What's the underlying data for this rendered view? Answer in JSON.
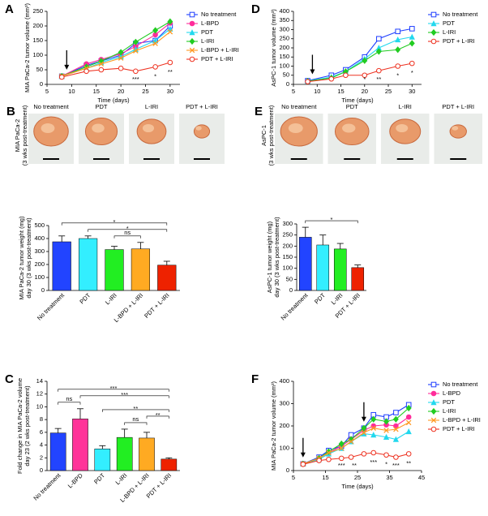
{
  "chart_data": [
    {
      "panel": "A",
      "type": "line",
      "xlabel": "Time (days)",
      "ylabel": [
        "MIA PaCa-2 tumor volume (mm³)"
      ],
      "x": [
        8,
        13,
        16,
        20,
        23,
        27,
        30
      ],
      "xlim": [
        5,
        32
      ],
      "xticks": [
        5,
        10,
        15,
        20,
        25,
        30
      ],
      "ylim": [
        0,
        250
      ],
      "yticks": [
        0,
        50,
        100,
        150,
        200,
        250
      ],
      "arrows": [
        9
      ],
      "series": [
        {
          "name": "No treatment",
          "color": "#1f3fff",
          "marker": "square",
          "values": [
            28,
            65,
            80,
            100,
            140,
            150,
            200
          ]
        },
        {
          "name": "L-BPD",
          "color": "#ff2d9a",
          "marker": "circle",
          "values": [
            28,
            70,
            85,
            105,
            130,
            170,
            210
          ]
        },
        {
          "name": "PDT",
          "color": "#22d8ee",
          "marker": "triangle",
          "values": [
            28,
            55,
            75,
            95,
            120,
            150,
            190
          ]
        },
        {
          "name": "L-IRI",
          "color": "#22cc22",
          "marker": "diamond",
          "values": [
            28,
            60,
            80,
            110,
            145,
            185,
            215
          ]
        },
        {
          "name": "L-BPD + L-IRI",
          "color": "#ff9922",
          "marker": "cross",
          "values": [
            28,
            55,
            70,
            90,
            115,
            140,
            180
          ]
        },
        {
          "name": "PDT + L-IRI",
          "color": "#ee3322",
          "marker": "open-circle",
          "values": [
            25,
            45,
            50,
            55,
            45,
            60,
            75
          ]
        }
      ],
      "annotations": [
        {
          "x": 23,
          "text": "***"
        },
        {
          "x": 27,
          "text": "*"
        },
        {
          "x": 30,
          "text": "**"
        }
      ]
    },
    {
      "panel": "D",
      "type": "line",
      "xlabel": "Time (days)",
      "ylabel": [
        "AsPC-1 tumor volume (mm³)"
      ],
      "x": [
        8,
        13,
        16,
        20,
        23,
        27,
        30
      ],
      "xlim": [
        5,
        32
      ],
      "xticks": [
        5,
        10,
        15,
        20,
        25,
        30
      ],
      "ylim": [
        0,
        400
      ],
      "yticks": [
        0,
        50,
        100,
        150,
        200,
        250,
        300,
        350,
        400
      ],
      "arrows": [
        9
      ],
      "series": [
        {
          "name": "No treatment",
          "color": "#1f3fff",
          "marker": "square",
          "values": [
            20,
            50,
            80,
            150,
            250,
            290,
            305
          ]
        },
        {
          "name": "PDT",
          "color": "#22d8ee",
          "marker": "triangle",
          "values": [
            18,
            40,
            70,
            140,
            200,
            245,
            260
          ]
        },
        {
          "name": "L-IRI",
          "color": "#22cc22",
          "marker": "diamond",
          "values": [
            18,
            35,
            70,
            130,
            180,
            190,
            225
          ]
        },
        {
          "name": "PDT + L-IRI",
          "color": "#ee3322",
          "marker": "open-circle",
          "values": [
            15,
            30,
            50,
            50,
            75,
            100,
            115
          ]
        }
      ],
      "annotations": [
        {
          "x": 20,
          "text": "*"
        },
        {
          "x": 23,
          "text": "**"
        },
        {
          "x": 27,
          "text": "*"
        },
        {
          "x": 30,
          "text": "*"
        }
      ]
    },
    {
      "panel": "B",
      "type": "bar",
      "ylabel": [
        "MIA PaCa-2 tumor weight (mg)",
        "day 30 (3 wks post-treatment)"
      ],
      "photo_labels": [
        "No treatment",
        "PDT",
        "L-IRI",
        "PDT + L-IRI"
      ],
      "photo_side_label": [
        "MIA PaCa-2",
        "(3 wks post-treatment)"
      ],
      "categories": [
        "No treatment",
        "PDT",
        "L-IRI",
        "L-BPD + L-IRI",
        "PDT + L-IRI"
      ],
      "values": [
        375,
        400,
        315,
        320,
        195
      ],
      "errors": [
        45,
        20,
        25,
        50,
        30
      ],
      "colors": [
        "#2244ff",
        "#33eeff",
        "#22ee22",
        "#ffaa22",
        "#ee2200"
      ],
      "ylim": [
        0,
        500
      ],
      "yticks": [
        0,
        100,
        200,
        300,
        400,
        500
      ],
      "brackets": [
        {
          "from": 2,
          "to": 3,
          "text": "ns"
        },
        {
          "from": 1,
          "to": 4,
          "text": "*"
        },
        {
          "from": 0,
          "to": 4,
          "text": "*"
        }
      ]
    },
    {
      "panel": "E",
      "type": "bar",
      "ylabel": [
        "AsPC-1 tumor weight (mg)",
        "day 30 (3 wks post-treatment)"
      ],
      "photo_labels": [
        "No treatment",
        "PDT",
        "L-IRI",
        "PDT + L-IRI"
      ],
      "photo_side_label": [
        "AsPC-1",
        "(3 wks post-treatment)"
      ],
      "categories": [
        "No treatment",
        "PDT",
        "L-IRI",
        "PDT + L-IRI"
      ],
      "values": [
        240,
        205,
        187,
        103
      ],
      "errors": [
        45,
        45,
        25,
        12
      ],
      "colors": [
        "#2244ff",
        "#33eeff",
        "#22ee22",
        "#ee2200"
      ],
      "ylim": [
        0,
        300
      ],
      "yticks": [
        0,
        50,
        100,
        150,
        200,
        250,
        300
      ],
      "brackets": [
        {
          "from": 0,
          "to": 3,
          "text": "*"
        }
      ]
    },
    {
      "panel": "C",
      "type": "bar",
      "ylabel": [
        "Fold change in MIA PaCa-2 volume",
        "day 23 (2 wks post-treatment)"
      ],
      "categories": [
        "No treatment",
        "L-BPD",
        "PDT",
        "L-IRI",
        "L-BPD + L-IRI",
        "PDT + L-IRI"
      ],
      "values": [
        5.9,
        8.1,
        3.4,
        5.2,
        5.1,
        1.8
      ],
      "errors": [
        0.7,
        1.6,
        0.5,
        1.3,
        0.9,
        0.2
      ],
      "colors": [
        "#2244ff",
        "#ff3399",
        "#33eeff",
        "#22ee22",
        "#ffaa22",
        "#ee2200"
      ],
      "ylim": [
        0,
        14
      ],
      "yticks": [
        0,
        2,
        4,
        6,
        8,
        10,
        12,
        14
      ],
      "brackets": [
        {
          "from": 3,
          "to": 4,
          "text": "ns"
        },
        {
          "from": 4,
          "to": 5,
          "text": "**"
        },
        {
          "from": 0,
          "to": 1,
          "text": "ns"
        },
        {
          "from": 2,
          "to": 5,
          "text": "**"
        },
        {
          "from": 1,
          "to": 5,
          "text": "***"
        },
        {
          "from": 0,
          "to": 5,
          "text": "***"
        }
      ]
    },
    {
      "panel": "F",
      "type": "line",
      "xlabel": "Time (days)",
      "ylabel": [
        "MIA PaCa-2 tumor volume (mm³)"
      ],
      "x": [
        8,
        13,
        16,
        20,
        23,
        27,
        30,
        34,
        37,
        41
      ],
      "xlim": [
        5,
        45
      ],
      "xticks": [
        5,
        15,
        25,
        35,
        45
      ],
      "ylim": [
        0,
        400
      ],
      "yticks": [
        0,
        100,
        200,
        300,
        400
      ],
      "arrows": [
        8,
        27
      ],
      "series": [
        {
          "name": "No treatment",
          "color": "#1f3fff",
          "marker": "square",
          "values": [
            30,
            60,
            90,
            110,
            160,
            190,
            250,
            240,
            260,
            295
          ]
        },
        {
          "name": "L-BPD",
          "color": "#ff2d9a",
          "marker": "circle",
          "values": [
            30,
            55,
            80,
            110,
            140,
            180,
            200,
            205,
            200,
            240
          ]
        },
        {
          "name": "PDT",
          "color": "#22d8ee",
          "marker": "triangle",
          "values": [
            30,
            50,
            75,
            100,
            130,
            165,
            160,
            150,
            140,
            175
          ]
        },
        {
          "name": "L-IRI",
          "color": "#22cc22",
          "marker": "diamond",
          "values": [
            30,
            55,
            85,
            120,
            140,
            190,
            230,
            220,
            230,
            280
          ]
        },
        {
          "name": "L-BPD + L-IRI",
          "color": "#ff9922",
          "marker": "cross",
          "values": [
            30,
            55,
            80,
            100,
            130,
            170,
            190,
            180,
            185,
            215
          ]
        },
        {
          "name": "PDT + L-IRI",
          "color": "#ee3322",
          "marker": "open-circle",
          "values": [
            28,
            45,
            50,
            55,
            60,
            75,
            80,
            70,
            60,
            75
          ]
        }
      ],
      "annotations": [
        {
          "x": 20,
          "text": "***"
        },
        {
          "x": 24,
          "text": "**"
        },
        {
          "x": 30,
          "text": "***"
        },
        {
          "x": 34,
          "text": "*"
        },
        {
          "x": 37,
          "text": "***"
        },
        {
          "x": 41,
          "text": "**"
        }
      ]
    }
  ]
}
